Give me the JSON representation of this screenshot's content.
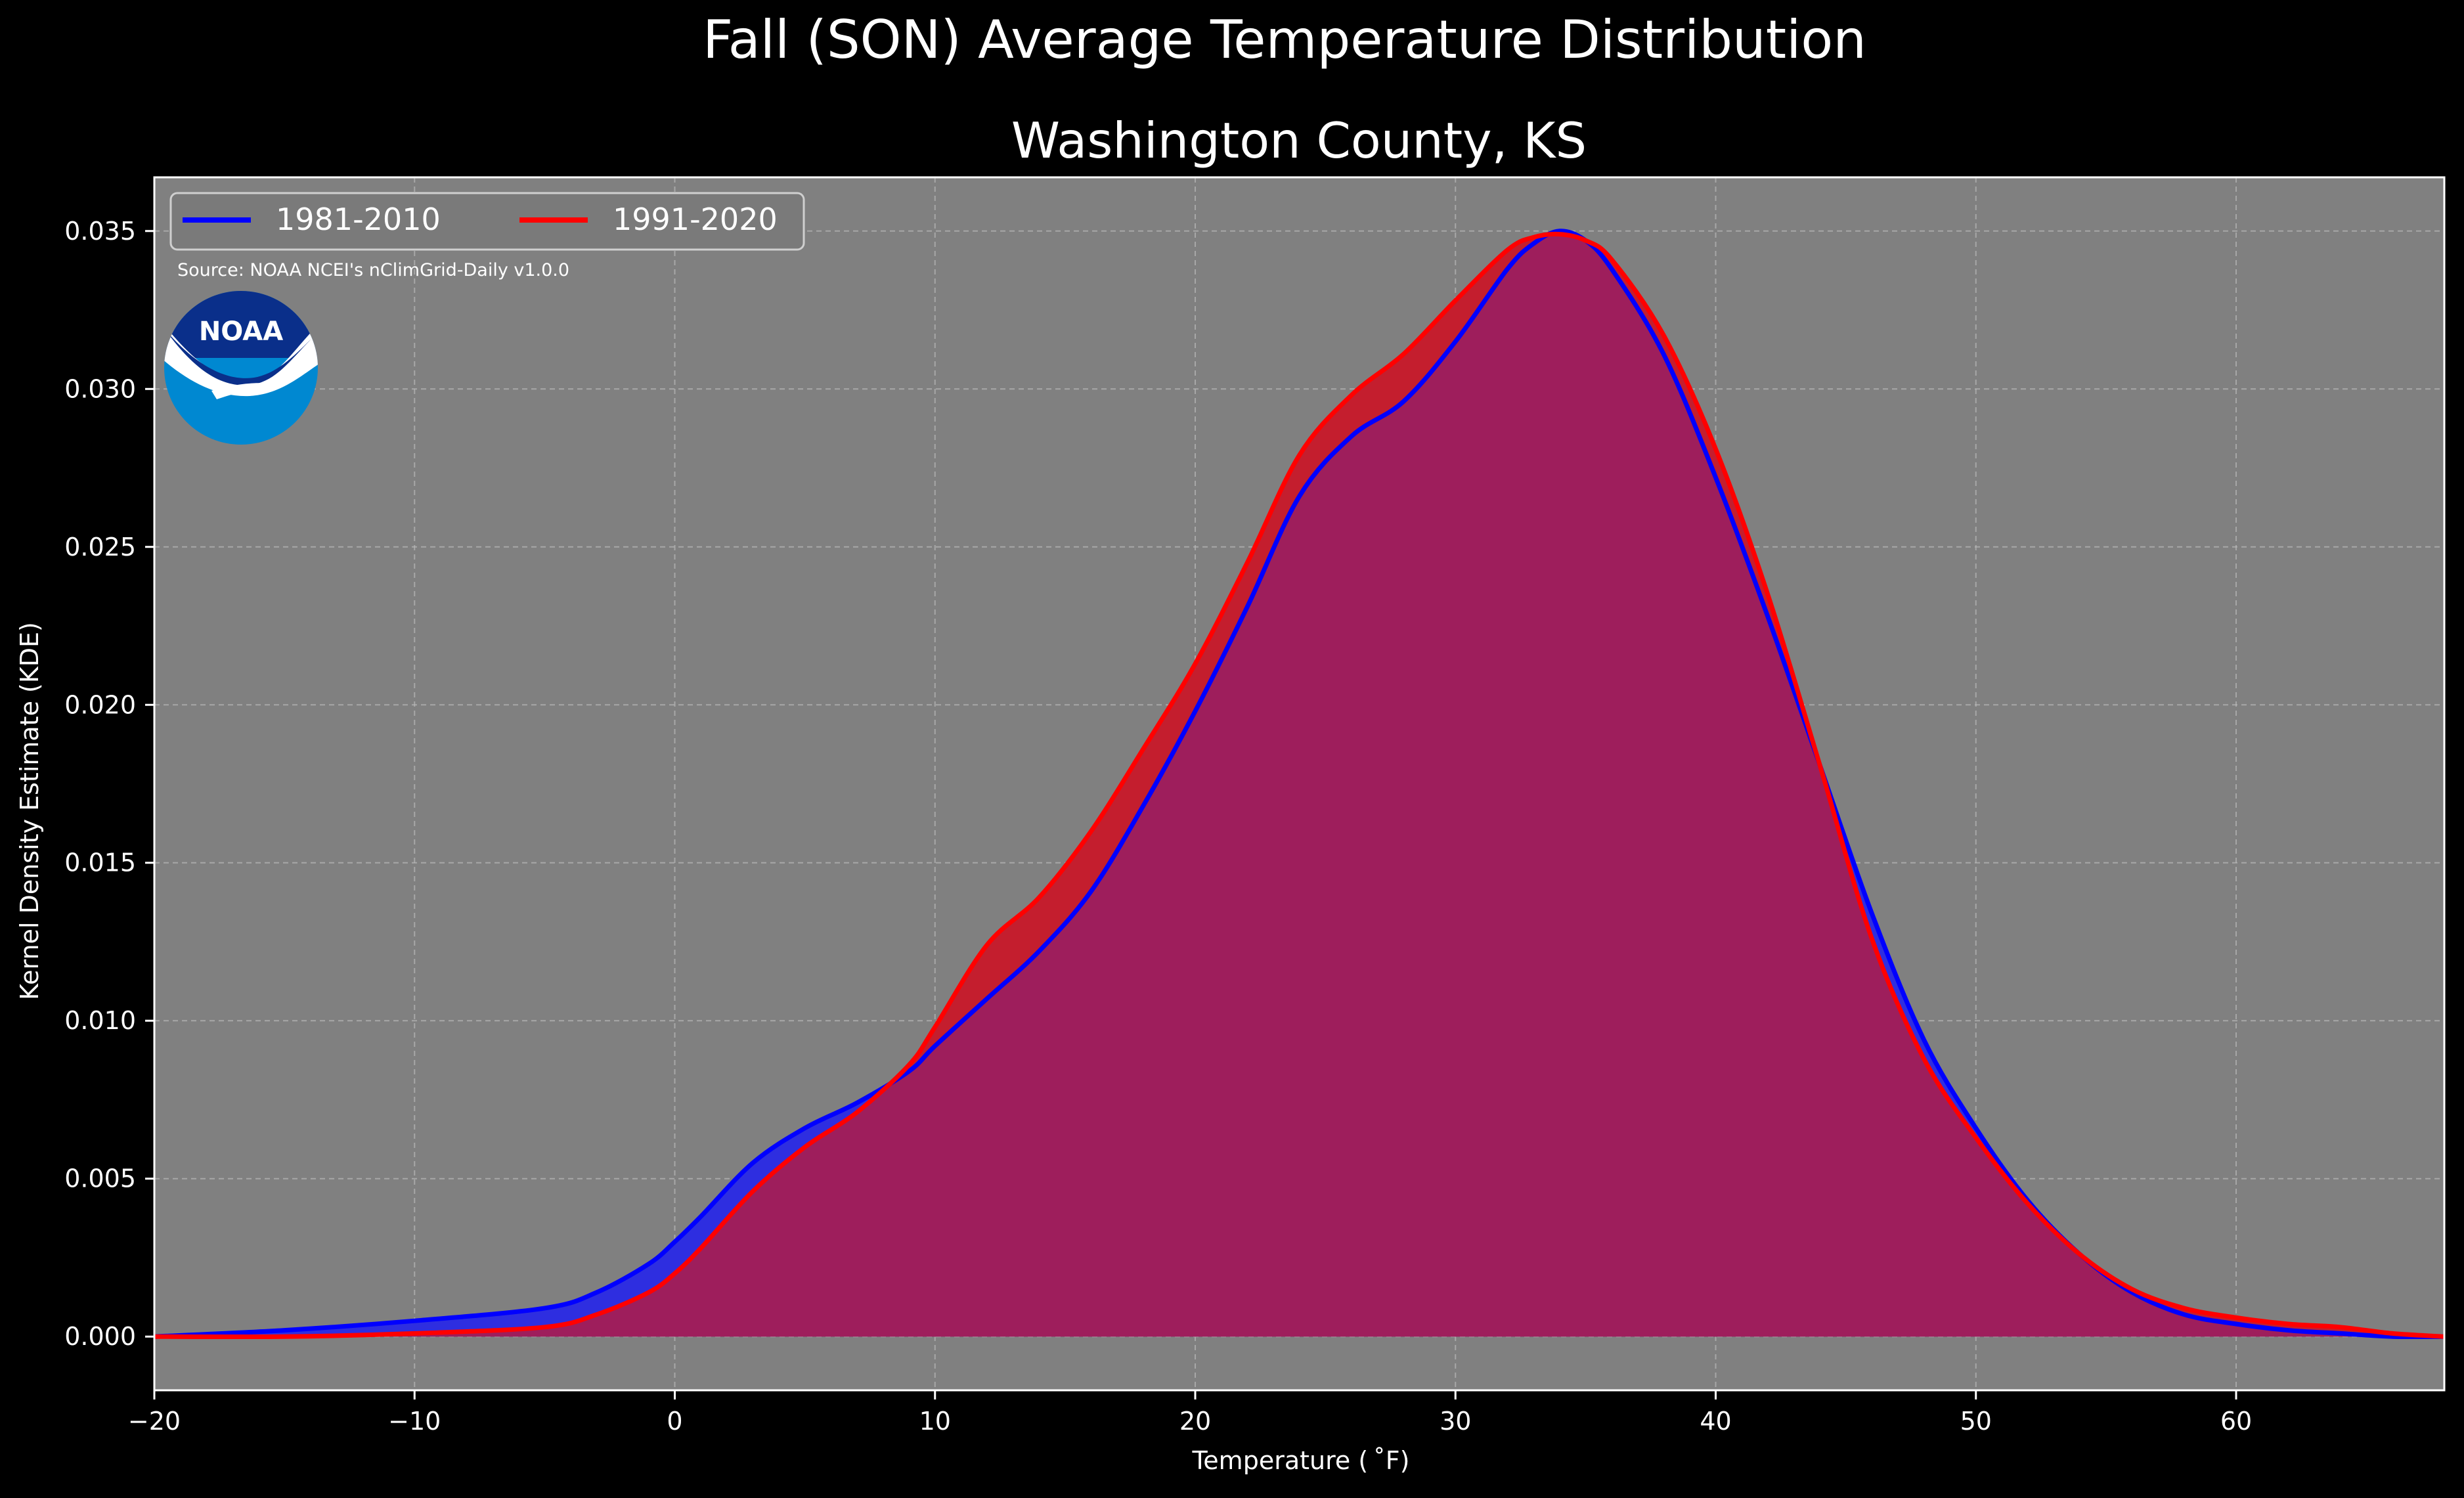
{
  "colors": {
    "background": "#000000",
    "plot_background": "#808080",
    "series_1981_2010": "#0000ff",
    "series_1991_2020": "#ff0000",
    "fill_1981_2010": "#2e2ee0",
    "fill_1991_2020": "#c41e2e",
    "overlap": "#9e1e5c",
    "grid": "#b8b8b8",
    "text": "#ffffff",
    "noaa_dark_blue": "#0a2f8a",
    "noaa_light_blue": "#0088d1"
  },
  "chart_data": {
    "type": "area",
    "suptitle": "Fall (SON) Average Temperature Distribution",
    "title": "Washington County, KS",
    "xlabel": "Temperature ($^\\circ$F)",
    "xlabel_display": "Temperature ( ˚F)",
    "ylabel": "Kernel Density Estimate (KDE)",
    "xlim": [
      -20,
      68
    ],
    "ylim": [
      -0.0017,
      0.0367
    ],
    "xticks": [
      -20,
      -10,
      0,
      10,
      20,
      30,
      40,
      50,
      60
    ],
    "xtick_labels": [
      "−20",
      "−10",
      "0",
      "10",
      "20",
      "30",
      "40",
      "50",
      "60"
    ],
    "yticks": [
      0.0,
      0.005,
      0.01,
      0.015,
      0.02,
      0.025,
      0.03,
      0.035
    ],
    "ytick_labels": [
      "0.000",
      "0.005",
      "0.010",
      "0.015",
      "0.020",
      "0.025",
      "0.030",
      "0.035"
    ],
    "grid": true,
    "legend_position": "top-left",
    "source_text": "Source: NOAA NCEI's nClimGrid-Daily v1.0.0",
    "logo_text": "NOAA",
    "series": [
      {
        "name": "1981-2010",
        "color": "#0000ff",
        "x": [
          -20,
          -15,
          -10,
          -5,
          -3,
          -1,
          0,
          1,
          3,
          5,
          7,
          9,
          10,
          12,
          14,
          16,
          18,
          20,
          22,
          24,
          26,
          28,
          30,
          32,
          33,
          34,
          35,
          36,
          38,
          40,
          42,
          44,
          46,
          48,
          50,
          52,
          54,
          56,
          58,
          60,
          62,
          64,
          66,
          68
        ],
        "y": [
          0.0,
          0.0002,
          0.0005,
          0.0009,
          0.0014,
          0.0023,
          0.003,
          0.0038,
          0.0055,
          0.0066,
          0.0074,
          0.0084,
          0.0092,
          0.0107,
          0.0122,
          0.0141,
          0.0168,
          0.0198,
          0.0231,
          0.0266,
          0.0285,
          0.0296,
          0.0315,
          0.0338,
          0.0346,
          0.035,
          0.0347,
          0.0338,
          0.0311,
          0.0272,
          0.0228,
          0.0181,
          0.0134,
          0.0094,
          0.0066,
          0.0043,
          0.0026,
          0.0014,
          0.0007,
          0.0004,
          0.0002,
          0.0001,
          0.0,
          0.0
        ]
      },
      {
        "name": "1991-2020",
        "color": "#ff0000",
        "x": [
          -20,
          -15,
          -10,
          -5,
          -3,
          -1,
          0,
          1,
          3,
          5,
          7,
          9,
          10,
          12,
          14,
          16,
          18,
          20,
          22,
          24,
          26,
          28,
          30,
          32,
          33,
          34,
          35,
          36,
          38,
          40,
          42,
          44,
          46,
          48,
          50,
          52,
          54,
          56,
          58,
          60,
          62,
          64,
          66,
          68
        ],
        "y": [
          0.0,
          0.0,
          0.0001,
          0.0003,
          0.0007,
          0.0014,
          0.002,
          0.0028,
          0.0046,
          0.006,
          0.0071,
          0.0086,
          0.0098,
          0.0124,
          0.0139,
          0.016,
          0.0186,
          0.0213,
          0.0245,
          0.0279,
          0.0298,
          0.0311,
          0.0328,
          0.0344,
          0.0348,
          0.0349,
          0.0347,
          0.0341,
          0.0317,
          0.0281,
          0.0235,
          0.0181,
          0.0126,
          0.0088,
          0.0063,
          0.0042,
          0.0026,
          0.0015,
          0.0009,
          0.0006,
          0.0004,
          0.0003,
          0.0001,
          0.0
        ]
      }
    ]
  }
}
